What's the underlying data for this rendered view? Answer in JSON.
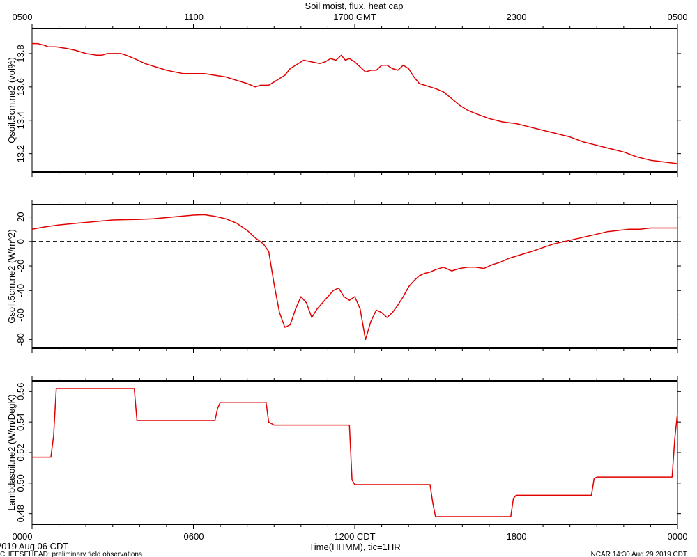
{
  "title": "Soil moist, flux, heat cap",
  "top_axis": {
    "ticks": [
      "0500",
      "1100",
      "1700 GMT",
      "2300",
      "0500"
    ]
  },
  "bottom_axis": {
    "ticks": [
      "0000",
      "0600",
      "1200 CDT",
      "1800",
      "0000"
    ],
    "label": "Time(HHMM), tic=1HR"
  },
  "date_label": "2019 Aug 06 CDT",
  "footer_left": "CHEESEHEAD: preliminary field observations",
  "footer_right": "NCAR 14:30 Aug 29 2019 CDT",
  "colors": {
    "line": "#e00000",
    "frame": "#000000",
    "zero_line": "#000000"
  },
  "chart_data": [
    {
      "type": "line",
      "ylabel": "Qsoil.5cm.ne2 (vol%)",
      "ylim": [
        13.09,
        13.95
      ],
      "yticks": [
        13.2,
        13.4,
        13.6,
        13.8
      ],
      "x_unit": "hours since 0000 CDT",
      "xlim": [
        0,
        24
      ],
      "series": [
        {
          "x": [
            0,
            0.2,
            0.45,
            0.6,
            0.9,
            1.3,
            1.6,
            2.0,
            2.4,
            2.6,
            2.8,
            3.0,
            3.3,
            3.5,
            3.8,
            4.2,
            4.6,
            5.0,
            5.3,
            5.6,
            6.0,
            6.4,
            6.8,
            7.2,
            7.6,
            8.0,
            8.3,
            8.5,
            8.8,
            9.0,
            9.2,
            9.4,
            9.6,
            9.8,
            10.1,
            10.4,
            10.7,
            10.9,
            11.1,
            11.3,
            11.5,
            11.65,
            11.8,
            12.0,
            12.2,
            12.4,
            12.6,
            12.8,
            13.0,
            13.2,
            13.4,
            13.6,
            13.8,
            14.0,
            14.2,
            14.4,
            14.6,
            14.8,
            15.0,
            15.3,
            15.6,
            15.9,
            16.2,
            16.5,
            17.0,
            17.5,
            18.0,
            18.5,
            19.0,
            19.5,
            20.0,
            20.5,
            21.0,
            21.5,
            22.0,
            22.5,
            23.0,
            23.5,
            24.0
          ],
          "values": [
            13.86,
            13.86,
            13.85,
            13.84,
            13.84,
            13.83,
            13.82,
            13.8,
            13.79,
            13.79,
            13.8,
            13.8,
            13.8,
            13.79,
            13.77,
            13.74,
            13.72,
            13.7,
            13.69,
            13.68,
            13.68,
            13.68,
            13.67,
            13.66,
            13.64,
            13.62,
            13.6,
            13.61,
            13.61,
            13.63,
            13.65,
            13.67,
            13.71,
            13.73,
            13.76,
            13.75,
            13.74,
            13.75,
            13.77,
            13.76,
            13.79,
            13.76,
            13.77,
            13.75,
            13.72,
            13.69,
            13.7,
            13.7,
            13.73,
            13.73,
            13.71,
            13.7,
            13.73,
            13.71,
            13.66,
            13.62,
            13.61,
            13.6,
            13.59,
            13.57,
            13.53,
            13.49,
            13.46,
            13.44,
            13.41,
            13.39,
            13.38,
            13.36,
            13.34,
            13.32,
            13.3,
            13.27,
            13.25,
            13.23,
            13.21,
            13.18,
            13.16,
            13.15,
            13.14
          ]
        }
      ]
    },
    {
      "type": "line",
      "ylabel": "Gsoil.5cm.ne2 (W/m^2)",
      "ylim": [
        -87,
        30
      ],
      "yticks": [
        -80,
        -60,
        -40,
        -20,
        0,
        20
      ],
      "x_unit": "hours since 0000 CDT",
      "xlim": [
        0,
        24
      ],
      "reference_line": {
        "y": 0,
        "style": "dashed"
      },
      "series": [
        {
          "x": [
            0,
            0.5,
            1.0,
            1.5,
            2.0,
            2.5,
            3.0,
            3.5,
            4.0,
            4.5,
            5.0,
            5.5,
            6.0,
            6.4,
            6.8,
            7.2,
            7.6,
            8.0,
            8.3,
            8.6,
            8.8,
            9.0,
            9.2,
            9.4,
            9.6,
            9.8,
            10.0,
            10.2,
            10.4,
            10.6,
            10.8,
            11.0,
            11.2,
            11.4,
            11.6,
            11.8,
            12.0,
            12.2,
            12.4,
            12.6,
            12.8,
            13.0,
            13.2,
            13.4,
            13.6,
            13.8,
            14.0,
            14.2,
            14.4,
            14.6,
            14.8,
            15.0,
            15.3,
            15.6,
            15.9,
            16.2,
            16.5,
            16.8,
            17.1,
            17.4,
            17.7,
            18.0,
            18.3,
            18.6,
            19.0,
            19.4,
            19.8,
            20.2,
            20.6,
            21.0,
            21.4,
            21.8,
            22.2,
            22.6,
            23.0,
            23.4,
            23.7,
            24.0
          ],
          "values": [
            10,
            12,
            13.5,
            14.5,
            15.5,
            16.5,
            17.5,
            17.8,
            18,
            18.5,
            19.5,
            20.5,
            21.5,
            21.8,
            20.5,
            18.5,
            15,
            9,
            3,
            -2,
            -8,
            -35,
            -58,
            -70,
            -68,
            -55,
            -45,
            -50,
            -62,
            -55,
            -50,
            -45,
            -40,
            -38,
            -45,
            -48,
            -45,
            -55,
            -80,
            -65,
            -56,
            -58,
            -62,
            -58,
            -52,
            -45,
            -37,
            -32,
            -28,
            -26,
            -25,
            -23,
            -21,
            -24,
            -22,
            -21,
            -21,
            -22,
            -19,
            -17,
            -14,
            -12,
            -10,
            -8,
            -5,
            -2,
            0,
            2,
            4,
            6,
            8,
            9,
            10,
            10,
            11,
            11,
            11,
            11
          ]
        }
      ]
    },
    {
      "type": "line",
      "ylabel": "Lambdasoil.ne2 (W/m/DegK)",
      "ylim": [
        0.473,
        0.567
      ],
      "yticks": [
        0.48,
        0.5,
        0.52,
        0.54,
        0.56
      ],
      "x_unit": "hours since 0000 CDT",
      "xlim": [
        0,
        24
      ],
      "series": [
        {
          "x": [
            0,
            0.7,
            0.8,
            0.9,
            2.0,
            3.0,
            3.8,
            3.9,
            4.0,
            5.0,
            6.0,
            6.8,
            6.9,
            7.0,
            8.0,
            8.7,
            8.8,
            9.0,
            10.0,
            11.0,
            11.8,
            11.9,
            12.0,
            13.0,
            14.0,
            14.8,
            14.9,
            15.0,
            16.0,
            17.0,
            17.8,
            17.9,
            18.0,
            19.0,
            20.0,
            20.8,
            20.9,
            21.0,
            22.0,
            23.0,
            23.8,
            23.9,
            24.0
          ],
          "values": [
            0.517,
            0.517,
            0.531,
            0.562,
            0.562,
            0.562,
            0.562,
            0.541,
            0.541,
            0.541,
            0.541,
            0.541,
            0.549,
            0.553,
            0.553,
            0.553,
            0.54,
            0.538,
            0.538,
            0.538,
            0.538,
            0.502,
            0.499,
            0.499,
            0.499,
            0.499,
            0.487,
            0.478,
            0.478,
            0.478,
            0.478,
            0.49,
            0.492,
            0.492,
            0.492,
            0.492,
            0.503,
            0.504,
            0.504,
            0.504,
            0.504,
            0.529,
            0.546
          ]
        }
      ]
    }
  ]
}
